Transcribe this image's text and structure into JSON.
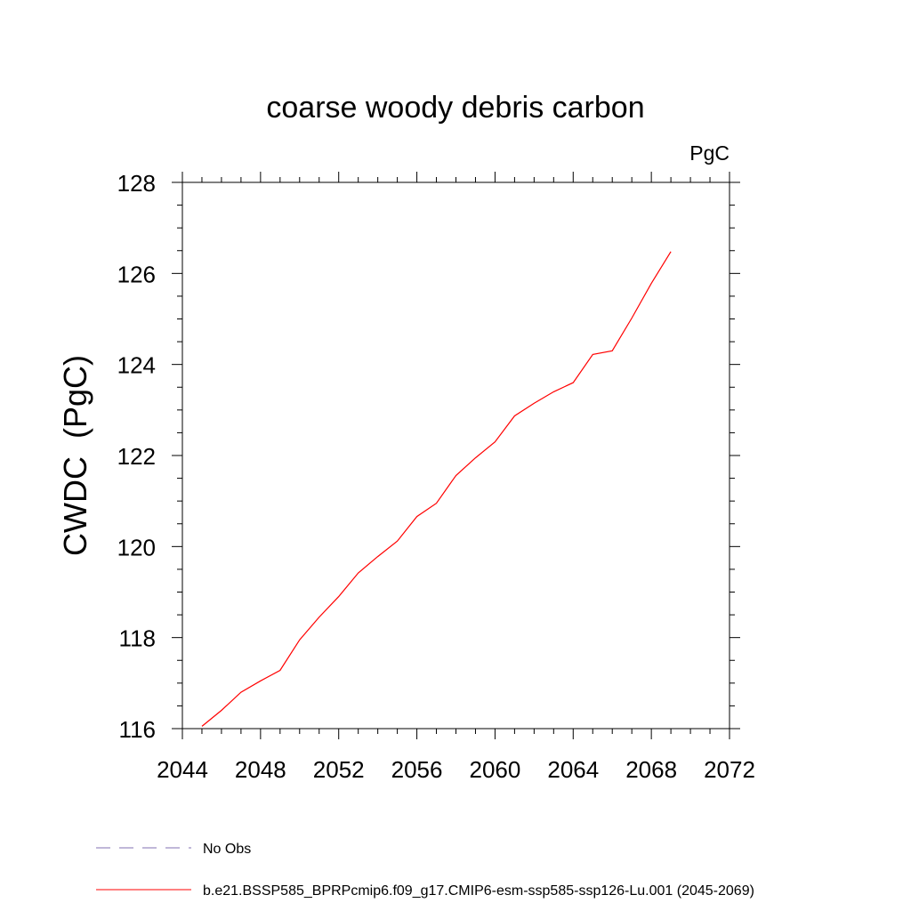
{
  "chart_data": {
    "type": "line",
    "title": "coarse woody debris carbon",
    "units_label": "PgC",
    "ylabel": "CWDC  (PgC)",
    "xlabel": "",
    "xlim": [
      2044,
      2072
    ],
    "ylim": [
      116,
      128
    ],
    "x_ticks": [
      2044,
      2048,
      2052,
      2056,
      2060,
      2064,
      2068,
      2072
    ],
    "y_ticks": [
      116,
      118,
      120,
      122,
      124,
      126,
      128
    ],
    "grid": false,
    "legend_position": "bottom-left",
    "series": [
      {
        "name": "No Obs",
        "color": "#8070b0",
        "dash": "dashed",
        "x": [],
        "y": []
      },
      {
        "name": "b.e21.BSSP585_BPRPcmip6.f09_g17.CMIP6-esm-ssp585-ssp126-Lu.001 (2045-2069)",
        "color": "#ff0000",
        "dash": "solid",
        "x": [
          2045,
          2046,
          2047,
          2048,
          2049,
          2050,
          2051,
          2052,
          2053,
          2054,
          2055,
          2056,
          2057,
          2058,
          2059,
          2060,
          2061,
          2062,
          2063,
          2064,
          2065,
          2066,
          2067,
          2068,
          2069
        ],
        "y": [
          116.05,
          116.4,
          116.8,
          117.05,
          117.28,
          117.95,
          118.45,
          118.9,
          119.42,
          119.78,
          120.12,
          120.66,
          120.95,
          121.56,
          121.95,
          122.3,
          122.87,
          123.15,
          123.4,
          123.6,
          124.22,
          124.3,
          125.02,
          125.78,
          126.48
        ]
      }
    ]
  }
}
